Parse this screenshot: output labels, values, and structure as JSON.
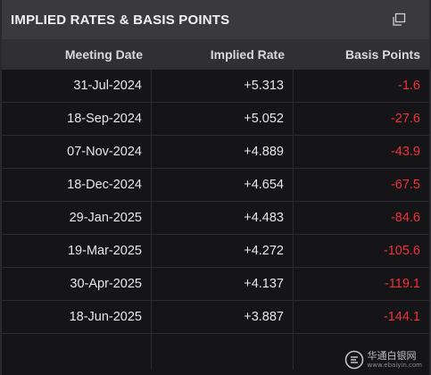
{
  "panel": {
    "title": "IMPLIED RATES & BASIS POINTS",
    "popout_icon": "popout-window-icon"
  },
  "table": {
    "headers": [
      "Meeting Date",
      "Implied Rate",
      "Basis Points"
    ],
    "rows": [
      {
        "date": "31-Jul-2024",
        "rate": "+5.313",
        "bps": "-1.6"
      },
      {
        "date": "18-Sep-2024",
        "rate": "+5.052",
        "bps": "-27.6"
      },
      {
        "date": "07-Nov-2024",
        "rate": "+4.889",
        "bps": "-43.9"
      },
      {
        "date": "18-Dec-2024",
        "rate": "+4.654",
        "bps": "-67.5"
      },
      {
        "date": "29-Jan-2025",
        "rate": "+4.483",
        "bps": "-84.6"
      },
      {
        "date": "19-Mar-2025",
        "rate": "+4.272",
        "bps": "-105.6"
      },
      {
        "date": "30-Apr-2025",
        "rate": "+4.137",
        "bps": "-119.1"
      },
      {
        "date": "18-Jun-2025",
        "rate": "+3.887",
        "bps": "-144.1"
      }
    ]
  },
  "watermark": {
    "main": "华通白银网",
    "sub": "www.ebaiyin.com",
    "icon": "ebaiyin-logo-icon"
  },
  "colors": {
    "negative": "#f0313a",
    "title_bar": "#3a3a3d",
    "header_bar": "#303033",
    "background": "#151517"
  }
}
